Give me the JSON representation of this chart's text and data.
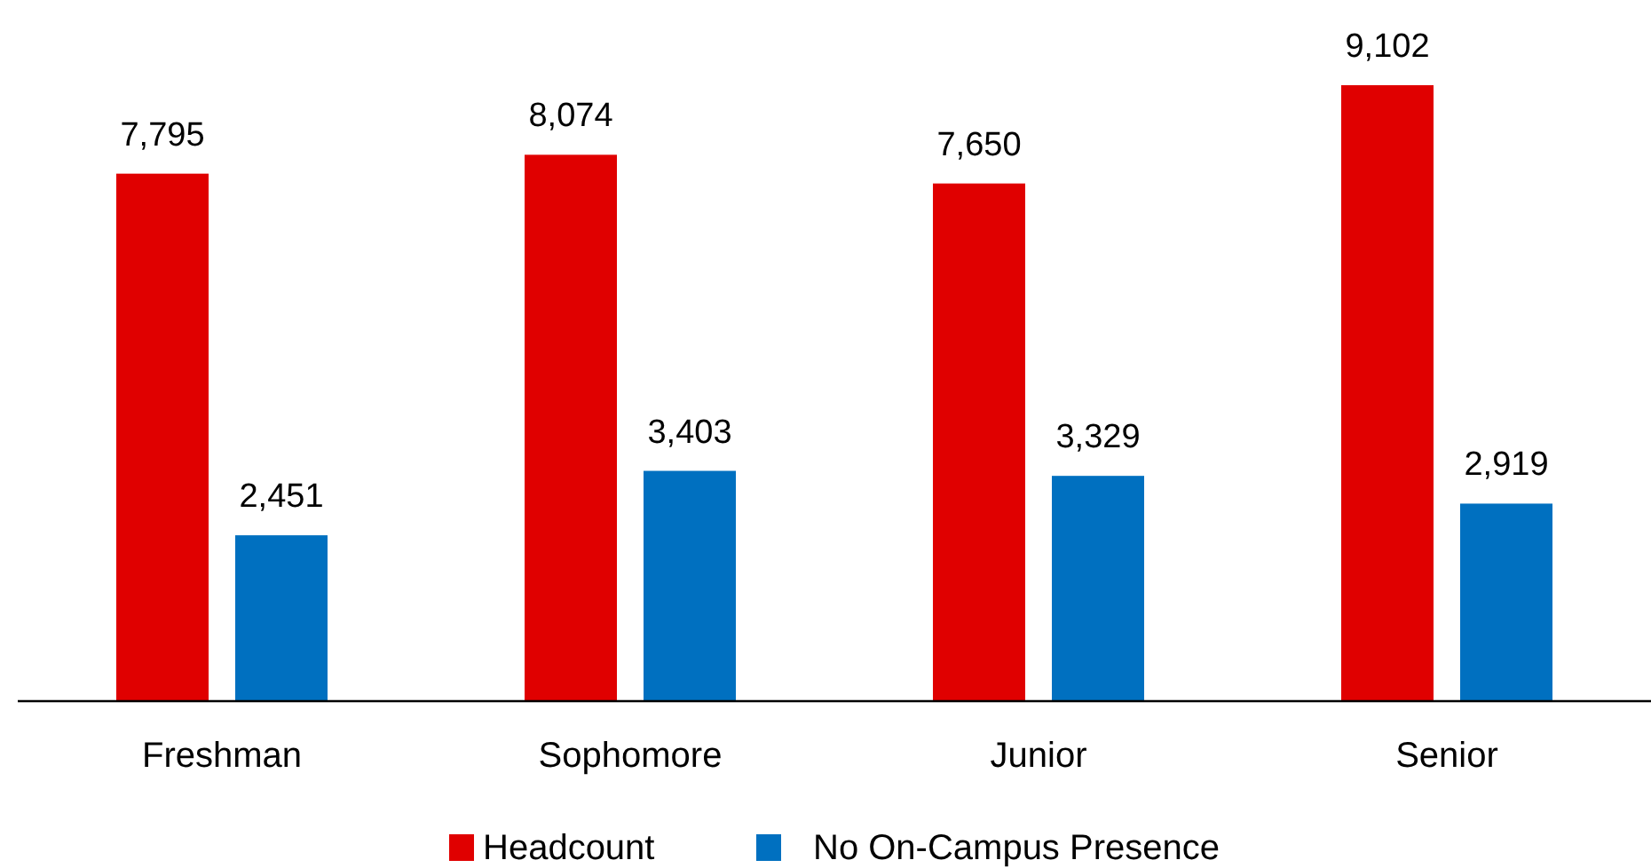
{
  "chart_data": {
    "type": "bar",
    "categories": [
      "Freshman",
      "Sophomore",
      "Junior",
      "Senior"
    ],
    "series": [
      {
        "name": "Headcount",
        "color": "#e00000",
        "values": [
          7795,
          8074,
          7650,
          9102
        ],
        "value_labels": [
          "7,795",
          "8,074",
          "7,650",
          "9,102"
        ]
      },
      {
        "name": "No On-Campus Presence",
        "color": "#0070c0",
        "values": [
          2451,
          3403,
          3329,
          2919
        ],
        "value_labels": [
          "2,451",
          "3,403",
          "3,329",
          "2,919"
        ]
      }
    ],
    "legend": "bottom"
  }
}
